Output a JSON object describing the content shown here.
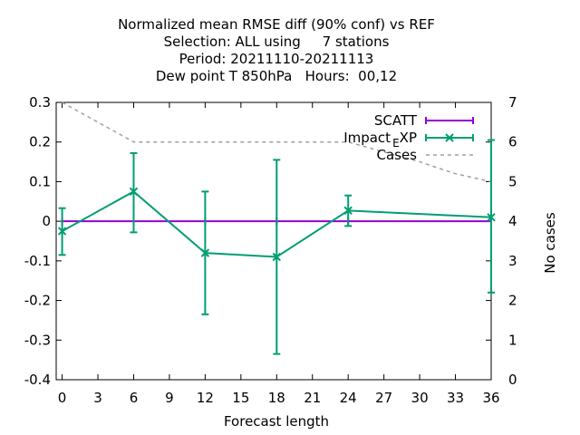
{
  "chart_data": {
    "type": "line",
    "title_lines": [
      "Normalized mean RMSE diff (90% conf) vs REF",
      "Selection: ALL using     7 stations",
      "Period: 20211110-20211113",
      "Dew point T 850hPa   Hours:  00,12"
    ],
    "xlabel": "Forecast length",
    "ylabel": "",
    "y2label": "No cases",
    "xlim": [
      -0.5,
      36
    ],
    "ylim": [
      -0.4,
      0.3
    ],
    "y2lim": [
      0,
      7
    ],
    "x_ticks": [
      0,
      3,
      6,
      9,
      12,
      15,
      18,
      21,
      24,
      27,
      30,
      33,
      36
    ],
    "y_ticks": [
      0.3,
      0.2,
      0.1,
      0,
      -0.1,
      -0.2,
      -0.3,
      -0.4
    ],
    "y_tick_labels": [
      "0.3",
      "0.2",
      "0.1",
      "0",
      "-0.1",
      "-0.2",
      "-0.3",
      "-0.4"
    ],
    "y2_ticks": [
      7,
      6,
      5,
      4,
      3,
      2,
      1,
      0
    ],
    "legend_position": "top-right",
    "series": [
      {
        "name": "SCATT",
        "color": "#9400d3",
        "x": [
          0,
          6,
          12,
          18,
          24,
          36
        ],
        "y": [
          0,
          0,
          0,
          0,
          0,
          0
        ]
      },
      {
        "name": "Impact_EXP",
        "legend_parts": [
          "Impact",
          "E",
          "XP"
        ],
        "color": "#009e73",
        "x": [
          0,
          6,
          12,
          18,
          24,
          36
        ],
        "y": [
          -0.025,
          0.075,
          -0.08,
          -0.09,
          0.027,
          0.01
        ],
        "err_low": [
          -0.085,
          -0.028,
          -0.235,
          -0.335,
          -0.012,
          -0.18
        ],
        "err_high": [
          0.033,
          0.172,
          0.075,
          0.155,
          0.065,
          0.205
        ]
      },
      {
        "name": "Cases",
        "color": "#a0a0a0",
        "axis": "y2",
        "x": [
          0,
          6,
          12,
          18,
          24,
          30,
          33,
          36
        ],
        "y": [
          7,
          6,
          6,
          6,
          6,
          5.5,
          5.2,
          5
        ]
      }
    ]
  }
}
